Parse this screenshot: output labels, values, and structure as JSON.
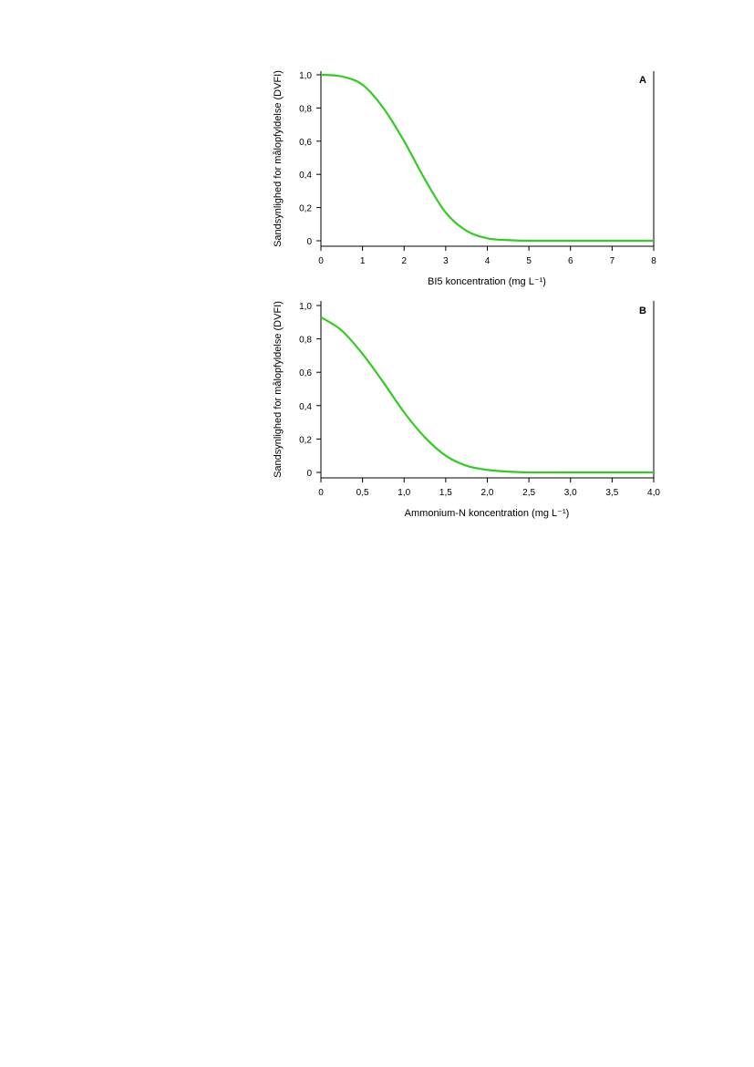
{
  "chart_data": [
    {
      "type": "line",
      "panel_label": "A",
      "ylabel": "Sandsynlighed for målopfyldelse (DVFI)",
      "xlabel": "BI5 koncentration (mg L⁻¹)",
      "xlim": [
        0,
        8
      ],
      "ylim": [
        0,
        1.0
      ],
      "xticks": [
        "0",
        "1",
        "2",
        "3",
        "4",
        "5",
        "6",
        "7",
        "8"
      ],
      "yticks": [
        "0",
        "0,2",
        "0,4",
        "0,6",
        "0,8",
        "1,0"
      ],
      "grid": false,
      "series": [
        {
          "color": "#33cc22",
          "x": [
            0,
            0.5,
            1.0,
            1.5,
            2.0,
            2.5,
            3.0,
            3.5,
            4.0,
            4.5,
            5.0,
            6.0,
            7.0,
            8.0
          ],
          "y": [
            1.0,
            0.99,
            0.94,
            0.8,
            0.6,
            0.37,
            0.17,
            0.06,
            0.015,
            0.004,
            0.0,
            0.0,
            0.0,
            0.0
          ]
        }
      ]
    },
    {
      "type": "line",
      "panel_label": "B",
      "ylabel": "Sandsynlighed for målopfyldelse (DVFI)",
      "xlabel": "Ammonium-N koncentration (mg L⁻¹)",
      "xlim": [
        0,
        4.0
      ],
      "ylim": [
        0,
        1.0
      ],
      "xticks": [
        "0",
        "0,5",
        "1,0",
        "1,5",
        "2,0",
        "2,5",
        "3,0",
        "3,5",
        "4,0"
      ],
      "yticks": [
        "0",
        "0,2",
        "0,4",
        "0,6",
        "0,8",
        "1,0"
      ],
      "grid": false,
      "series": [
        {
          "color": "#33cc22",
          "x": [
            0,
            0.25,
            0.5,
            0.75,
            1.0,
            1.25,
            1.5,
            1.75,
            2.0,
            2.25,
            2.5,
            3.0,
            3.5,
            4.0
          ],
          "y": [
            0.93,
            0.85,
            0.71,
            0.54,
            0.36,
            0.21,
            0.1,
            0.04,
            0.015,
            0.005,
            0.0,
            0.0,
            0.0,
            0.0
          ]
        }
      ]
    }
  ]
}
